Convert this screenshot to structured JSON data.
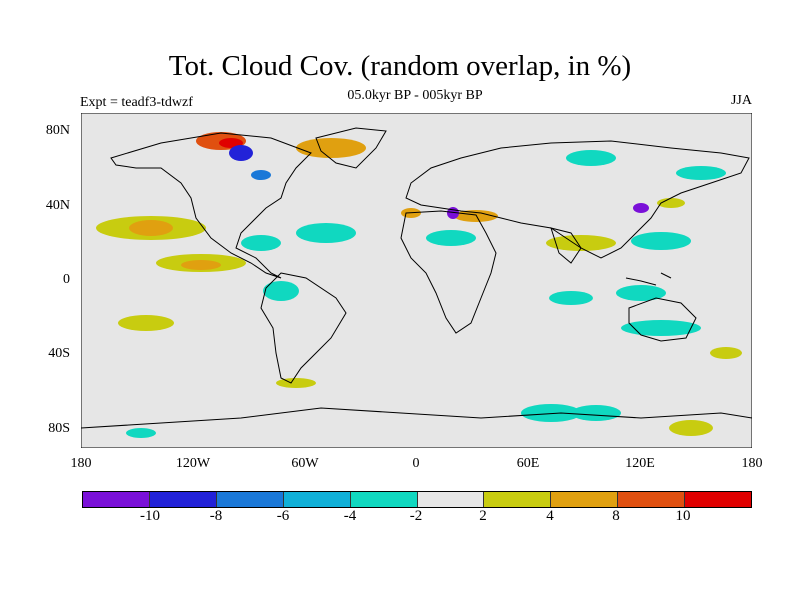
{
  "header": {
    "title": "Tot. Cloud Cov. (random overlap, in %)",
    "subtitle": "05.0kyr BP - 005kyr BP",
    "experiment": "Expt = teadf3-tdwzf",
    "season": "JJA"
  },
  "axes": {
    "lat_ticks": [
      "80N",
      "40N",
      "0",
      "40S",
      "80S"
    ],
    "lon_ticks": [
      "180",
      "120W",
      "60W",
      "0",
      "60E",
      "120E",
      "180"
    ]
  },
  "colorbar": {
    "colors": [
      "#7a10d8",
      "#2222d8",
      "#1a78d8",
      "#10b0d8",
      "#10d8c0",
      "#e6e6e6",
      "#c8cc10",
      "#e0a010",
      "#e05010",
      "#e00000"
    ],
    "labels": [
      "-10",
      "-8",
      "-6",
      "-4",
      "-2",
      "2",
      "4",
      "8",
      "10"
    ]
  },
  "map": {
    "background": "#e6e6e6"
  }
}
